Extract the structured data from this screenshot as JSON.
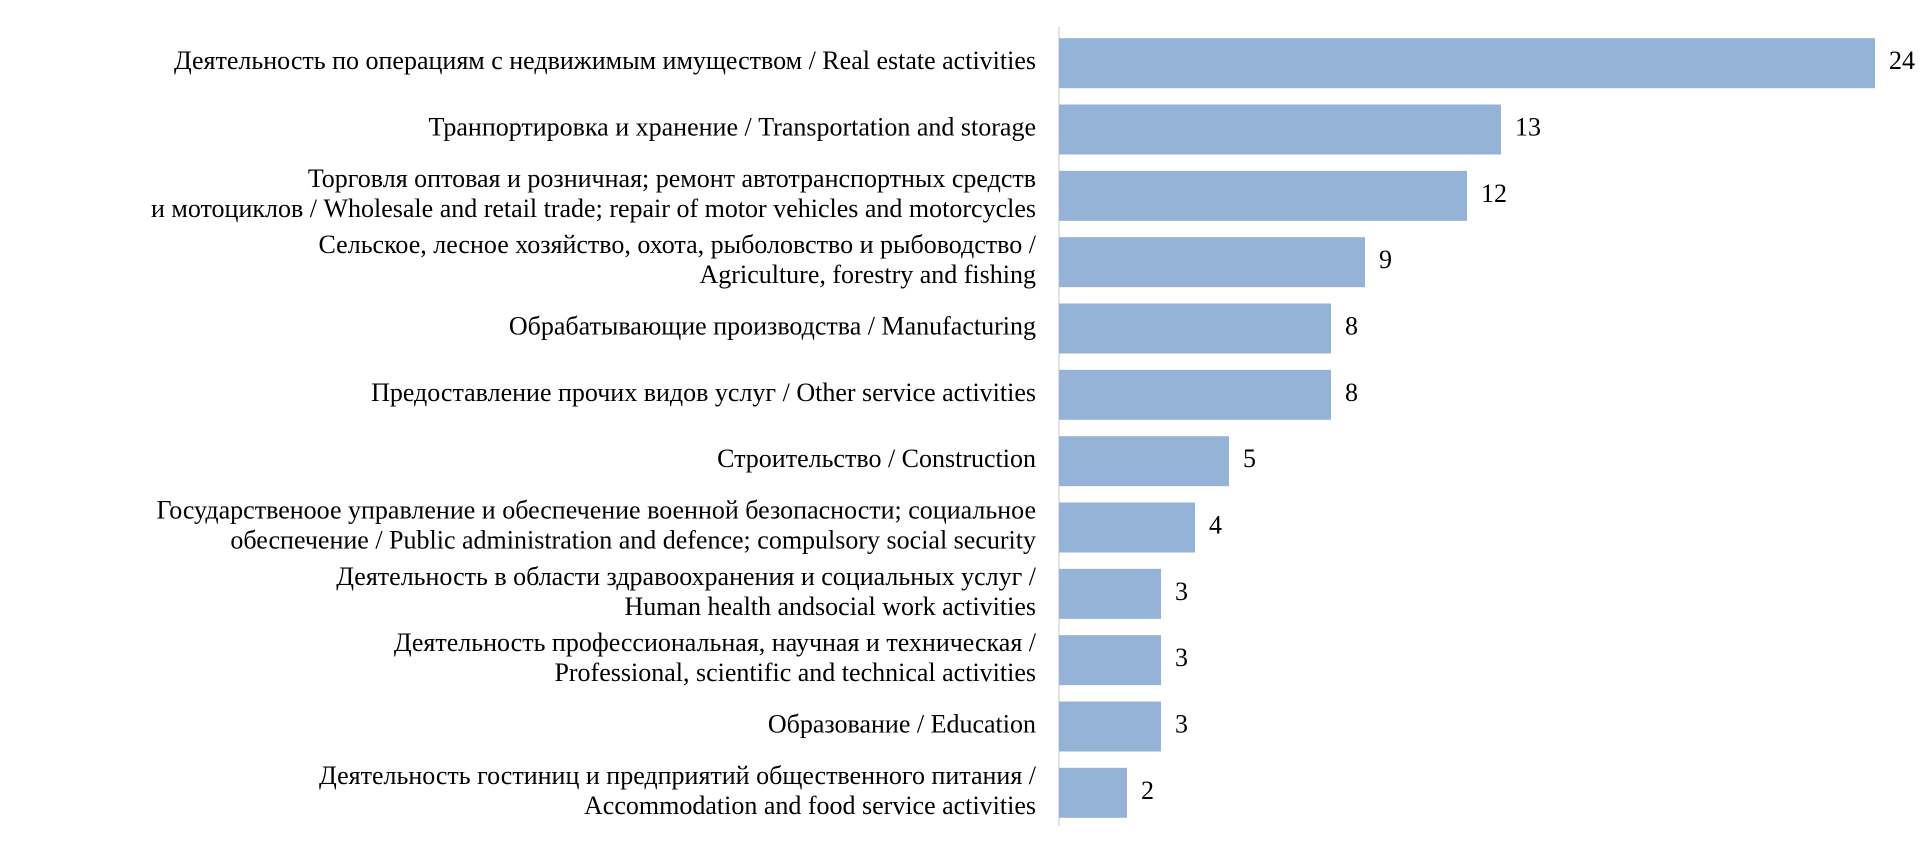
{
  "chart_data": {
    "type": "hbar",
    "categories": [
      [
        "Деятельность по операциям с недвижимым имуществом / Real estate activities"
      ],
      [
        "Транпортировка и хранение / Transportation and storage"
      ],
      [
        "Торговля оптовая и розничная; ремонт автотранспортных средств",
        "и мотоциклов / Wholesale and retail trade; repair of motor vehicles and motorcycles"
      ],
      [
        "Сельское, лесное хозяйство, охота, рыболовство и рыбоводство /",
        "Agriculture, forestry and fishing"
      ],
      [
        "Обрабатывающие производства / Manufacturing"
      ],
      [
        "Предоставление прочих видов услуг / Other service activities"
      ],
      [
        "Строительство / Construction"
      ],
      [
        "Государственоое управление и обеспечение военной безопасности; социальное",
        "обеспечение / Public administration and defence; compulsory social security"
      ],
      [
        "Деятельность в области здравоохранения и социальных услуг /",
        "Human health andsocial work activities"
      ],
      [
        "Деятельность профессиональная, научная и техническая /",
        "Professional, scientific and technical activities"
      ],
      [
        "Образование / Education"
      ],
      [
        "Деятельность гостиниц и предприятий общественного питания /",
        "Accommodation and food service activities"
      ]
    ],
    "values": [
      24,
      13,
      12,
      9,
      8,
      8,
      5,
      4,
      3,
      3,
      3,
      2
    ],
    "color": "#95b3d7",
    "xlim": [
      0,
      24
    ]
  }
}
